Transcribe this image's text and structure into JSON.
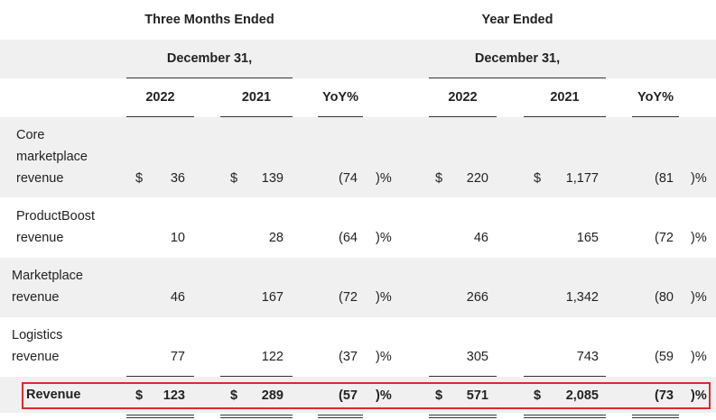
{
  "header": {
    "three_months": "Three Months Ended",
    "year": "Year Ended",
    "date_three": "December 31,",
    "date_year": "December 31,",
    "columns": [
      "2022",
      "2021",
      "YoY%",
      "2022",
      "2021",
      "YoY%"
    ]
  },
  "rows": [
    {
      "label_lines": [
        "Core",
        "marketplace",
        "revenue"
      ],
      "q2022_dollar": "$",
      "q2022": "36",
      "q2021_dollar": "$",
      "q2021": "139",
      "qyoy": "(74",
      "qyoy_suffix": ")%",
      "y2022_dollar": "$",
      "y2022": "220",
      "y2021_dollar": "$",
      "y2021": "1,177",
      "yyoy": "(81",
      "yyoy_suffix": ")%"
    },
    {
      "label_lines": [
        "ProductBoost",
        "revenue"
      ],
      "q2022": "10",
      "q2021": "28",
      "qyoy": "(64",
      "qyoy_suffix": ")%",
      "y2022": "46",
      "y2021": "165",
      "yyoy": "(72",
      "yyoy_suffix": ")%"
    },
    {
      "label_lines": [
        "Marketplace",
        "revenue"
      ],
      "q2022": "46",
      "q2021": "167",
      "qyoy": "(72",
      "qyoy_suffix": ")%",
      "y2022": "266",
      "y2021": "1,342",
      "yyoy": "(80",
      "yyoy_suffix": ")%"
    },
    {
      "label_lines": [
        "Logistics",
        "revenue"
      ],
      "q2022": "77",
      "q2021": "122",
      "qyoy": "(37",
      "qyoy_suffix": ")%",
      "y2022": "305",
      "y2021": "743",
      "yyoy": "(59",
      "yyoy_suffix": ")%"
    },
    {
      "label_lines": [
        "Revenue"
      ],
      "q2022_dollar": "$",
      "q2022": "123",
      "q2021_dollar": "$",
      "q2021": "289",
      "qyoy": "(57",
      "qyoy_suffix": ")%",
      "y2022_dollar": "$",
      "y2022": "571",
      "y2021_dollar": "$",
      "y2021": "2,085",
      "yyoy": "(73",
      "yyoy_suffix": ")%"
    }
  ],
  "colors": {
    "highlight_border": "#e0272e",
    "shade": "#f0f0f0"
  }
}
